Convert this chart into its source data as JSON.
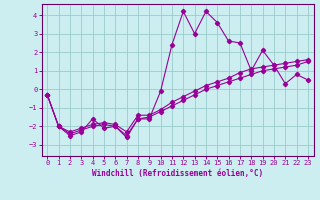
{
  "xlabel": "Windchill (Refroidissement éolien,°C)",
  "background_color": "#cceef0",
  "grid_color": "#99cccc",
  "line_color": "#990099",
  "spine_color": "#660066",
  "x_ticks": [
    0,
    1,
    2,
    3,
    4,
    5,
    6,
    7,
    8,
    9,
    10,
    11,
    12,
    13,
    14,
    15,
    16,
    17,
    18,
    19,
    20,
    21,
    22,
    23
  ],
  "y_ticks": [
    -3,
    -2,
    -1,
    0,
    1,
    2,
    3,
    4
  ],
  "xlim": [
    -0.5,
    23.5
  ],
  "ylim": [
    -3.6,
    4.6
  ],
  "series1_x": [
    0,
    1,
    2,
    3,
    4,
    5,
    6,
    7,
    8,
    9,
    10,
    11,
    12,
    13,
    14,
    15,
    16,
    17,
    18,
    19,
    20,
    21,
    22,
    23
  ],
  "series1_y": [
    -0.3,
    -2.0,
    -2.5,
    -2.3,
    -1.6,
    -2.1,
    -2.0,
    -2.6,
    -1.6,
    -1.6,
    -0.1,
    2.4,
    4.2,
    3.0,
    4.2,
    3.6,
    2.6,
    2.5,
    1.0,
    2.1,
    1.3,
    0.3,
    0.8,
    0.5
  ],
  "series2_x": [
    0,
    1,
    2,
    3,
    4,
    5,
    6,
    7,
    8,
    9,
    10,
    11,
    12,
    13,
    14,
    15,
    16,
    17,
    18,
    19,
    20,
    21,
    22,
    23
  ],
  "series2_y": [
    -0.3,
    -2.0,
    -2.4,
    -2.2,
    -2.0,
    -1.9,
    -2.0,
    -2.5,
    -1.6,
    -1.5,
    -1.2,
    -0.9,
    -0.6,
    -0.3,
    0.0,
    0.2,
    0.4,
    0.6,
    0.8,
    1.0,
    1.1,
    1.2,
    1.3,
    1.5
  ],
  "series3_x": [
    0,
    1,
    2,
    3,
    4,
    5,
    6,
    7,
    8,
    9,
    10,
    11,
    12,
    13,
    14,
    15,
    16,
    17,
    18,
    19,
    20,
    21,
    22,
    23
  ],
  "series3_y": [
    -0.3,
    -2.0,
    -2.3,
    -2.1,
    -1.9,
    -1.8,
    -1.9,
    -2.3,
    -1.4,
    -1.4,
    -1.1,
    -0.7,
    -0.4,
    -0.1,
    0.2,
    0.4,
    0.6,
    0.9,
    1.1,
    1.2,
    1.3,
    1.4,
    1.5,
    1.6
  ]
}
